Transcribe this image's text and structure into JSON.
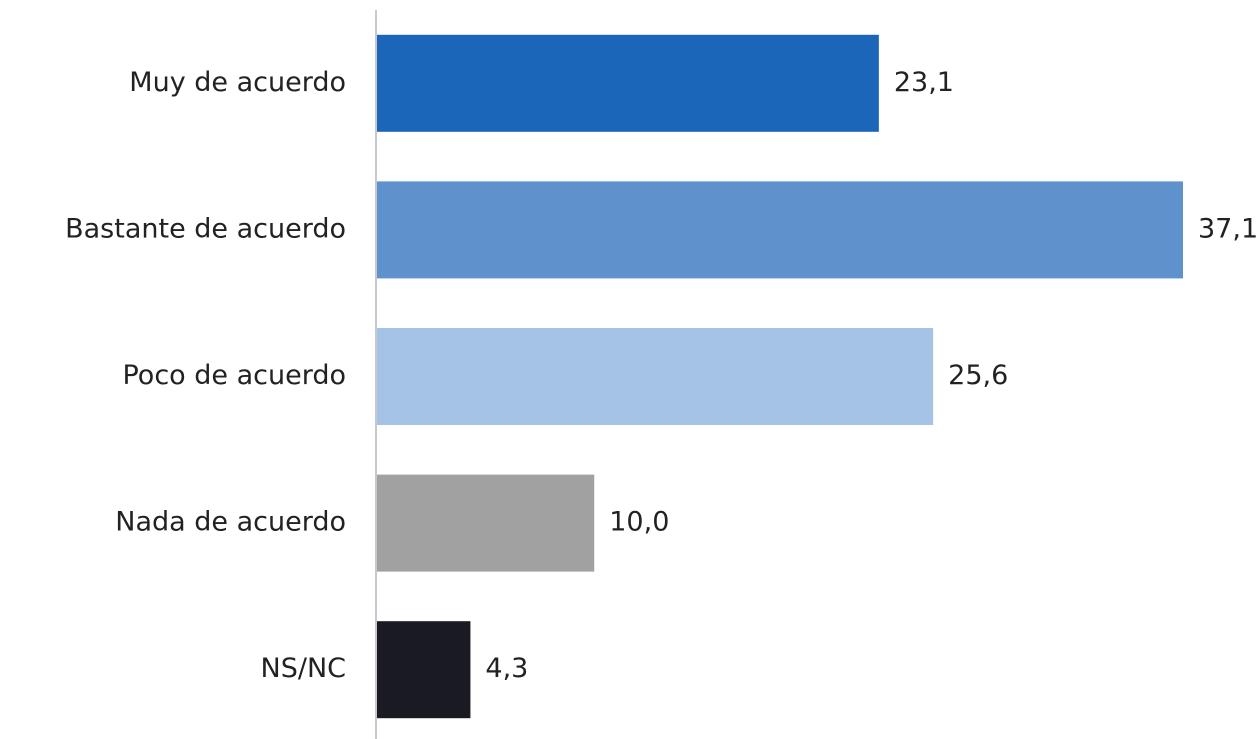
{
  "chart_data": {
    "type": "bar",
    "orientation": "horizontal",
    "categories": [
      "Muy de acuerdo",
      "Bastante de acuerdo",
      "Poco de acuerdo",
      "Nada de acuerdo",
      "NS/NC"
    ],
    "values": [
      23.1,
      37.1,
      25.6,
      10.0,
      4.3
    ],
    "value_labels": [
      "23,1",
      "37,1",
      "25,6",
      "10,0",
      "4,3"
    ],
    "colors": [
      "#1b66b8",
      "#5f92cc",
      "#a5c3e5",
      "#a0a1a0",
      "#1a1a22"
    ]
  }
}
